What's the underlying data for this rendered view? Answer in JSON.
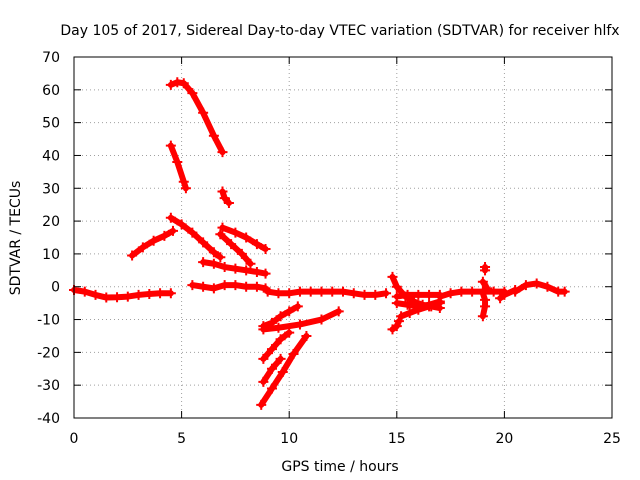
{
  "chart_data": {
    "type": "scatter",
    "title": "Day 105 of 2017, Sidereal Day-to-day VTEC variation (SDTVAR) for receiver hlfx",
    "xlabel": "GPS time / hours",
    "ylabel": "SDTVAR / TECUs",
    "xlim": [
      0,
      25
    ],
    "ylim": [
      -40,
      70
    ],
    "xticks": [
      "0",
      "5",
      "10",
      "15",
      "20",
      "25"
    ],
    "yticks": [
      "-40",
      "-30",
      "-20",
      "-10",
      "0",
      "10",
      "20",
      "30",
      "40",
      "50",
      "60",
      "70"
    ],
    "grid": true,
    "marker_color": "#ff0000",
    "series": [
      {
        "points": [
          [
            0.0,
            -1.0
          ],
          [
            0.5,
            -1.5
          ],
          [
            1.0,
            -2.5
          ],
          [
            1.5,
            -3.3
          ],
          [
            2.0,
            -3.2
          ],
          [
            2.5,
            -3.0
          ],
          [
            3.0,
            -2.5
          ],
          [
            3.5,
            -2.2
          ],
          [
            4.0,
            -2.0
          ],
          [
            4.5,
            -2.0
          ]
        ]
      },
      {
        "points": [
          [
            2.7,
            9.5
          ],
          [
            3.2,
            12.0
          ],
          [
            3.7,
            14.0
          ],
          [
            4.2,
            15.5
          ],
          [
            4.6,
            17.0
          ]
        ]
      },
      {
        "points": [
          [
            4.5,
            43.0
          ],
          [
            4.8,
            38.0
          ],
          [
            5.1,
            32.0
          ],
          [
            5.2,
            30.0
          ]
        ]
      },
      {
        "points": [
          [
            4.5,
            61.5
          ],
          [
            4.8,
            62.3
          ],
          [
            5.1,
            62.0
          ],
          [
            5.5,
            59.0
          ],
          [
            6.0,
            53.0
          ],
          [
            6.5,
            46.0
          ],
          [
            6.9,
            41.0
          ]
        ]
      },
      {
        "points": [
          [
            4.5,
            21.0
          ],
          [
            5.0,
            19.0
          ],
          [
            5.5,
            16.5
          ],
          [
            6.0,
            13.5
          ],
          [
            6.5,
            10.5
          ],
          [
            6.8,
            9.0
          ]
        ]
      },
      {
        "points": [
          [
            6.9,
            29.0
          ],
          [
            7.0,
            27.0
          ],
          [
            7.2,
            25.5
          ]
        ]
      },
      {
        "points": [
          [
            6.8,
            16.0
          ],
          [
            7.3,
            13.0
          ],
          [
            7.8,
            10.0
          ],
          [
            8.2,
            7.0
          ]
        ]
      },
      {
        "points": [
          [
            6.9,
            18.0
          ],
          [
            7.5,
            16.5
          ],
          [
            8.0,
            15.0
          ],
          [
            8.5,
            13.0
          ],
          [
            8.9,
            11.5
          ]
        ]
      },
      {
        "points": [
          [
            6.0,
            7.5
          ],
          [
            6.5,
            7.0
          ],
          [
            7.0,
            6.0
          ],
          [
            7.5,
            5.5
          ],
          [
            8.0,
            5.0
          ],
          [
            8.5,
            4.5
          ],
          [
            8.9,
            4.0
          ]
        ]
      },
      {
        "points": [
          [
            5.5,
            0.5
          ],
          [
            6.0,
            0.0
          ],
          [
            6.5,
            -0.5
          ],
          [
            7.0,
            0.5
          ],
          [
            7.5,
            0.5
          ],
          [
            8.0,
            0.0
          ],
          [
            8.5,
            0.0
          ],
          [
            8.9,
            -0.5
          ]
        ]
      },
      {
        "points": [
          [
            9.0,
            -1.5
          ],
          [
            9.5,
            -2.0
          ],
          [
            10.0,
            -2.0
          ],
          [
            10.5,
            -1.5
          ],
          [
            11.0,
            -1.5
          ],
          [
            11.5,
            -1.5
          ],
          [
            12.0,
            -1.5
          ],
          [
            12.5,
            -1.5
          ],
          [
            13.0,
            -2.0
          ],
          [
            13.5,
            -2.5
          ],
          [
            14.0,
            -2.5
          ],
          [
            14.5,
            -2.0
          ]
        ]
      },
      {
        "points": [
          [
            8.8,
            -12.0
          ],
          [
            9.2,
            -11.0
          ],
          [
            9.6,
            -9.0
          ],
          [
            10.0,
            -7.5
          ],
          [
            10.4,
            -6.0
          ]
        ]
      },
      {
        "points": [
          [
            8.8,
            -13.0
          ],
          [
            9.5,
            -12.5
          ],
          [
            10.5,
            -11.5
          ],
          [
            11.5,
            -10.0
          ],
          [
            12.3,
            -7.5
          ]
        ]
      },
      {
        "points": [
          [
            8.8,
            -22.0
          ],
          [
            9.2,
            -19.0
          ],
          [
            9.6,
            -16.0
          ],
          [
            10.0,
            -14.0
          ]
        ]
      },
      {
        "points": [
          [
            8.8,
            -29.0
          ],
          [
            9.2,
            -25.0
          ],
          [
            9.6,
            -22.0
          ]
        ]
      },
      {
        "points": [
          [
            8.7,
            -36.0
          ],
          [
            9.2,
            -31.0
          ],
          [
            9.7,
            -26.0
          ],
          [
            10.2,
            -20.5
          ],
          [
            10.8,
            -15.0
          ]
        ]
      },
      {
        "points": [
          [
            14.8,
            -13.0
          ],
          [
            15.0,
            -12.0
          ],
          [
            15.1,
            -10.5
          ]
        ]
      },
      {
        "points": [
          [
            14.8,
            3.0
          ],
          [
            15.0,
            0.0
          ],
          [
            15.4,
            -3.0
          ],
          [
            15.8,
            -4.5
          ],
          [
            16.2,
            -5.5
          ],
          [
            16.6,
            -6.0
          ],
          [
            17.0,
            -6.5
          ]
        ]
      },
      {
        "points": [
          [
            15.0,
            -3.0
          ],
          [
            15.5,
            -2.5
          ],
          [
            16.0,
            -2.5
          ],
          [
            16.5,
            -2.5
          ],
          [
            17.0,
            -2.5
          ]
        ]
      },
      {
        "points": [
          [
            15.2,
            -9.0
          ],
          [
            15.6,
            -8.0
          ],
          [
            16.0,
            -7.0
          ],
          [
            16.5,
            -6.0
          ],
          [
            17.0,
            -5.0
          ]
        ]
      },
      {
        "points": [
          [
            15.0,
            -5.0
          ],
          [
            15.5,
            -5.5
          ],
          [
            16.0,
            -6.0
          ],
          [
            16.5,
            -5.5
          ],
          [
            17.0,
            -4.5
          ]
        ]
      },
      {
        "points": [
          [
            17.0,
            -3.0
          ],
          [
            17.5,
            -2.0
          ],
          [
            18.0,
            -1.5
          ],
          [
            18.5,
            -1.5
          ],
          [
            19.0,
            -1.5
          ],
          [
            19.5,
            -1.5
          ],
          [
            20.0,
            -1.5
          ]
        ]
      },
      {
        "points": [
          [
            19.0,
            -2.0
          ],
          [
            19.1,
            -4.0
          ],
          [
            19.1,
            -6.0
          ],
          [
            19.0,
            -9.0
          ]
        ]
      },
      {
        "points": [
          [
            19.0,
            1.5
          ],
          [
            19.2,
            -0.5
          ]
        ]
      },
      {
        "points": [
          [
            19.1,
            6.0
          ],
          [
            19.1,
            5.0
          ]
        ]
      },
      {
        "points": [
          [
            19.8,
            -3.5
          ],
          [
            20.0,
            -2.5
          ],
          [
            20.5,
            -1.0
          ]
        ]
      },
      {
        "points": [
          [
            20.5,
            -1.5
          ],
          [
            21.0,
            0.5
          ],
          [
            21.5,
            1.0
          ],
          [
            22.0,
            0.0
          ],
          [
            22.5,
            -1.5
          ],
          [
            22.8,
            -1.5
          ]
        ]
      }
    ]
  }
}
